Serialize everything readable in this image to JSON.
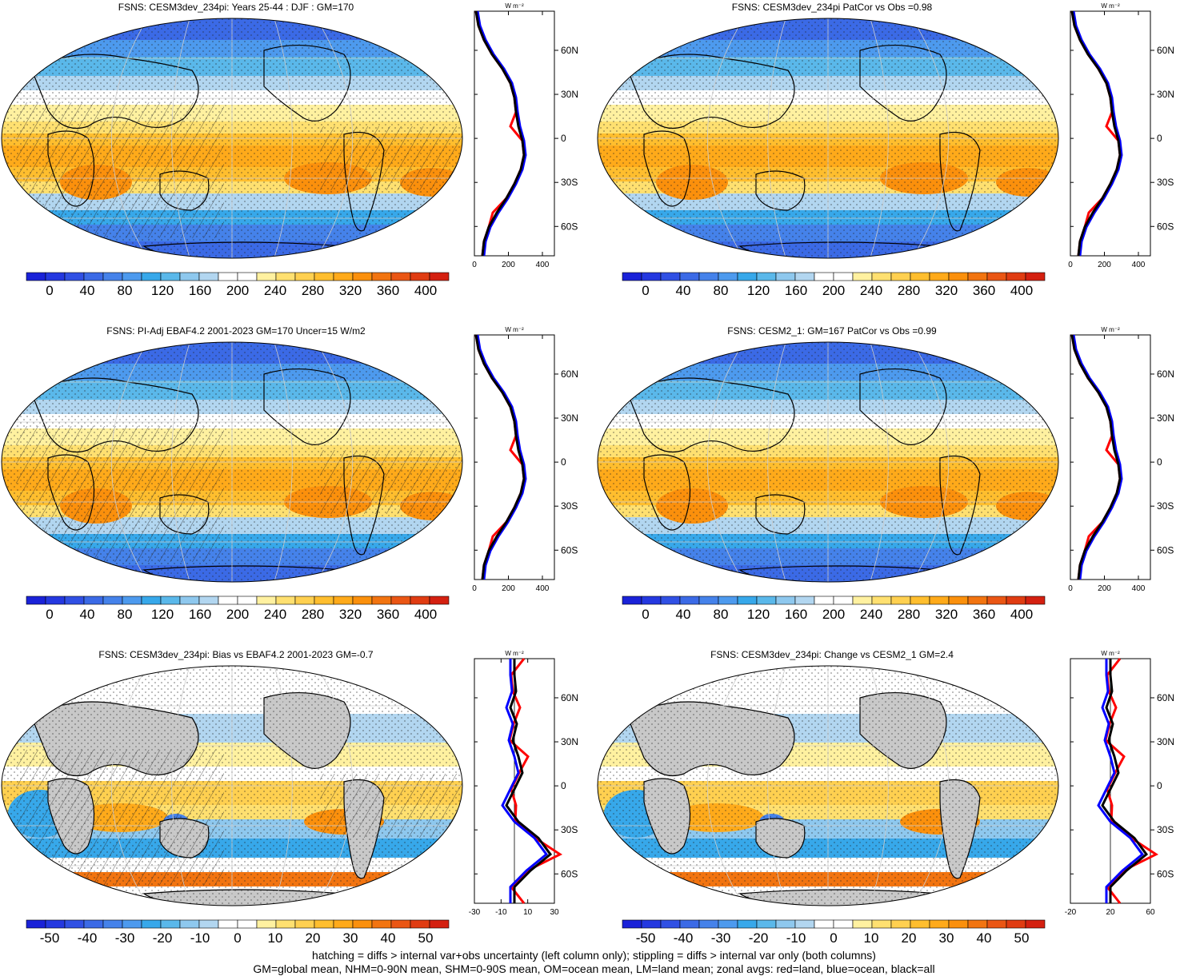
{
  "panels": [
    {
      "id": "p1",
      "title": "FSNS: CESM3dev_234pi: Years 25-44 : DJF : GM=170",
      "kind": "abs",
      "colorbar_labels": [
        "0",
        "40",
        "80",
        "120",
        "160",
        "200",
        "240",
        "280",
        "320",
        "360",
        "400"
      ],
      "zonal_xticks": [
        "0",
        "200",
        "400"
      ],
      "zonal_unit": "W m⁻²",
      "zonal_lat_labels": [
        "60N",
        "30N",
        "0",
        "30S",
        "60S"
      ],
      "hatching": true
    },
    {
      "id": "p2",
      "title": "FSNS: CESM3dev_234pi PatCor vs Obs =0.98",
      "kind": "abs",
      "colorbar_labels": [
        "0",
        "40",
        "80",
        "120",
        "160",
        "200",
        "240",
        "280",
        "320",
        "360",
        "400"
      ],
      "zonal_xticks": [
        "0",
        "200",
        "400"
      ],
      "zonal_unit": "W m⁻²",
      "zonal_lat_labels": [
        "60N",
        "30N",
        "0",
        "30S",
        "60S"
      ],
      "hatching": false
    },
    {
      "id": "p3",
      "title": "FSNS: PI-Adj EBAF4.2 2001-2023 GM=170 Uncer=15 W/m2",
      "kind": "abs",
      "colorbar_labels": [
        "0",
        "40",
        "80",
        "120",
        "160",
        "200",
        "240",
        "280",
        "320",
        "360",
        "400"
      ],
      "zonal_xticks": [
        "0",
        "200",
        "400"
      ],
      "zonal_unit": "W m⁻²",
      "zonal_lat_labels": [
        "60N",
        "30N",
        "0",
        "30S",
        "60S"
      ],
      "hatching": true
    },
    {
      "id": "p4",
      "title": "FSNS: CESM2_1: GM=167 PatCor vs Obs =0.99",
      "kind": "abs",
      "colorbar_labels": [
        "0",
        "40",
        "80",
        "120",
        "160",
        "200",
        "240",
        "280",
        "320",
        "360",
        "400"
      ],
      "zonal_xticks": [
        "0",
        "200",
        "400"
      ],
      "zonal_unit": "W m⁻²",
      "zonal_lat_labels": [
        "60N",
        "30N",
        "0",
        "30S",
        "60S"
      ],
      "hatching": false
    },
    {
      "id": "p5",
      "title": "FSNS: CESM3dev_234pi: Bias vs EBAF4.2 2001-2023 GM=-0.7",
      "kind": "diff",
      "colorbar_labels": [
        "-50",
        "-40",
        "-30",
        "-20",
        "-10",
        "0",
        "10",
        "20",
        "30",
        "40",
        "50"
      ],
      "zonal_xticks": [
        "-30",
        "-10",
        "10",
        "30"
      ],
      "zonal_unit": "W m⁻²",
      "zonal_lat_labels": [
        "60N",
        "30N",
        "0",
        "30S",
        "60S"
      ],
      "hatching": true
    },
    {
      "id": "p6",
      "title": "FSNS: CESM3dev_234pi: Change vs CESM2_1 GM=2.4",
      "kind": "diff",
      "colorbar_labels": [
        "-50",
        "-40",
        "-30",
        "-20",
        "-10",
        "0",
        "10",
        "20",
        "30",
        "40",
        "50"
      ],
      "zonal_xticks": [
        "-20",
        "20",
        "60"
      ],
      "zonal_unit": "W m⁻²",
      "zonal_lat_labels": [
        "60N",
        "30N",
        "0",
        "30S",
        "60S"
      ],
      "hatching": false
    }
  ],
  "colors": {
    "abs_scale": [
      "#1a22d8",
      "#2438e0",
      "#3050e4",
      "#3b6ae6",
      "#4582ea",
      "#4d9aee",
      "#37a8ea",
      "#5ab8ea",
      "#8ec8ee",
      "#b2d6f0",
      "#ffffff",
      "#ffffff",
      "#fff1a0",
      "#ffe070",
      "#ffd050",
      "#ffbe2e",
      "#ffaa1a",
      "#fb900c",
      "#f27410",
      "#ea5614",
      "#e03c12",
      "#d42010"
    ],
    "diff_scale": [
      "#1a22d8",
      "#2438e0",
      "#3050e4",
      "#3b6ae6",
      "#4582ea",
      "#4d9aee",
      "#37a8ea",
      "#5ab8ea",
      "#8ec8ee",
      "#b2d6f0",
      "#ffffff",
      "#ffffff",
      "#fff1a0",
      "#ffe070",
      "#ffd050",
      "#ffbe2e",
      "#ffaa1a",
      "#fb900c",
      "#f27410",
      "#ea5614",
      "#e03c12",
      "#d42010"
    ],
    "land": "#c8c8c8",
    "zonal_land": "#ff0000",
    "zonal_ocean": "#0000ff",
    "zonal_all": "#000000"
  },
  "footer": {
    "line1": "hatching = diffs > internal var+obs uncertainty (left column only); stippling = diffs > internal var only (both columns)",
    "line2": "GM=global mean, NHM=0-90N mean, SHM=0-90S mean, OM=ocean mean, LM=land mean; zonal avgs: red=land, blue=ocean, black=all"
  }
}
